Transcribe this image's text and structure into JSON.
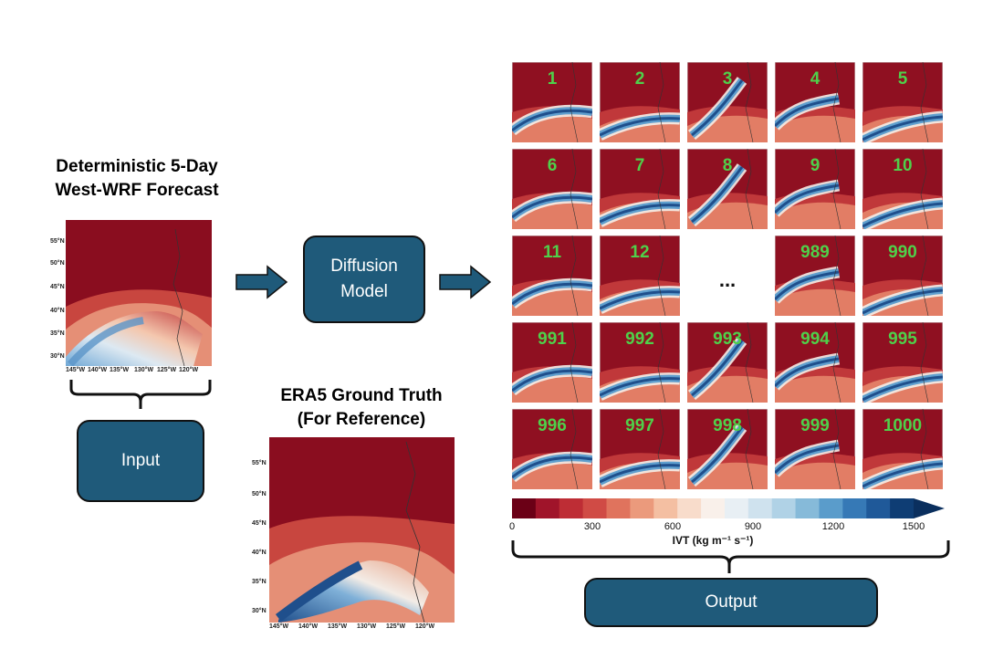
{
  "input_section": {
    "title_line1": "Deterministic 5-Day",
    "title_line2": "West-WRF Forecast",
    "lat_labels": [
      "55°N",
      "50°N",
      "45°N",
      "40°N",
      "35°N",
      "30°N"
    ],
    "lon_labels": [
      "145°W",
      "140°W",
      "135°W",
      "130°W",
      "125°W",
      "120°W"
    ],
    "box_label": "Input"
  },
  "model": {
    "label_line1": "Diffusion",
    "label_line2": "Model"
  },
  "reference": {
    "title_line1": "ERA5 Ground Truth",
    "title_line2": "(For Reference)",
    "lat_labels": [
      "55°N",
      "50°N",
      "45°N",
      "40°N",
      "35°N",
      "30°N"
    ],
    "lon_labels": [
      "145°W",
      "140°W",
      "135°W",
      "130°W",
      "125°W",
      "120°W"
    ]
  },
  "ensemble": {
    "members": [
      "1",
      "2",
      "3",
      "4",
      "5",
      "6",
      "7",
      "8",
      "9",
      "10",
      "11",
      "12",
      "...",
      "989",
      "990",
      "991",
      "992",
      "993",
      "994",
      "995",
      "996",
      "997",
      "998",
      "999",
      "1000"
    ]
  },
  "colorbar": {
    "ticks": [
      "0",
      "300",
      "600",
      "900",
      "1200",
      "1500"
    ],
    "label": "IVT (kg m⁻¹ s⁻¹)",
    "colors": [
      "#6b0016",
      "#a0142a",
      "#be2d35",
      "#d04b45",
      "#e0735d",
      "#eb9a7c",
      "#f4bfa2",
      "#f8dccb",
      "#f9f0ea",
      "#e8eff4",
      "#cfe2ee",
      "#b0d2e6",
      "#86bad9",
      "#5a9ccb",
      "#3679b6",
      "#1f5999",
      "#0e3d74"
    ],
    "extend_color": "#0a2f5e"
  },
  "output": {
    "box_label": "Output"
  },
  "colors": {
    "box_fill": "#1f5a7a",
    "member_label": "#4fd04a",
    "arrow": "#1f5a7a"
  }
}
